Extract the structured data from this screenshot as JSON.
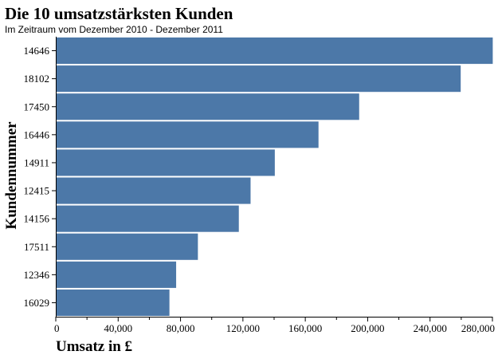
{
  "chart_data": {
    "type": "bar",
    "orientation": "horizontal",
    "title": "Die 10 umsatzstärksten Kunden",
    "subtitle": "Im Zeitraum vom Dezember 2010 - Dezember 2011",
    "xlabel": "Umsatz in £",
    "ylabel": "Kundennummer",
    "xlim": [
      0,
      280000
    ],
    "xticks": [
      0,
      40000,
      80000,
      120000,
      160000,
      200000,
      240000,
      280000
    ],
    "xtick_labels": [
      "0",
      "40,000",
      "80,000",
      "120,000",
      "160,000",
      "200,000",
      "240,000",
      "280,000"
    ],
    "categories": [
      "14646",
      "18102",
      "17450",
      "16446",
      "14911",
      "12415",
      "14156",
      "17511",
      "12346",
      "16029"
    ],
    "values": [
      280206,
      259657,
      194551,
      168472,
      140450,
      124914,
      117379,
      91136,
      77184,
      72882
    ],
    "color": "#4c78a8",
    "grid": false,
    "legend": "none"
  }
}
